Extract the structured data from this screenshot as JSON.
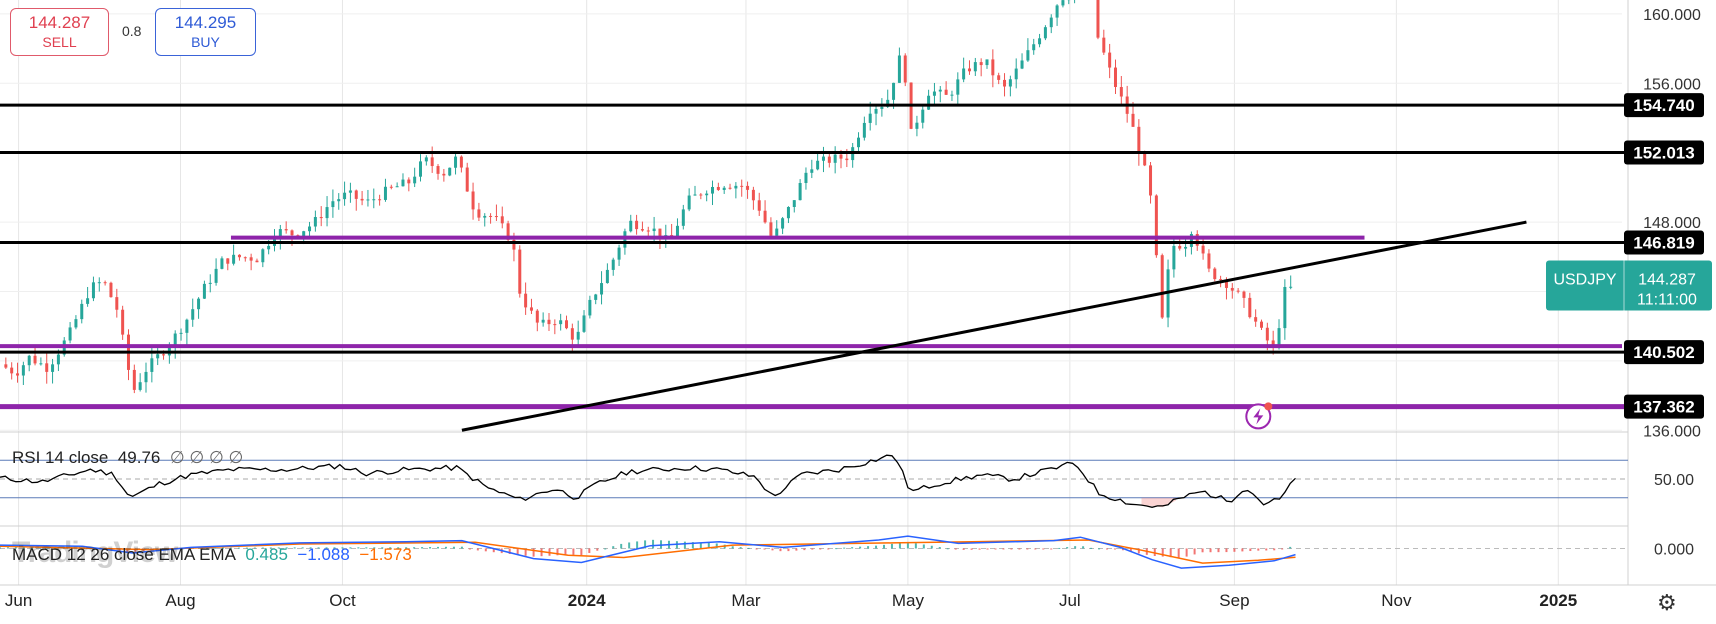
{
  "trade_panel": {
    "sell_price": "144.287",
    "sell_label": "SELL",
    "spread": "0.8",
    "buy_price": "144.295",
    "buy_label": "BUY"
  },
  "symbol_tag": {
    "symbol": "USDJPY",
    "price": "144.287",
    "countdown": "11:11:00",
    "color": "#26a69a"
  },
  "watermark": "TradingView",
  "colors": {
    "up": "#26a69a",
    "down": "#ef5350",
    "support_line": "#000000",
    "purple_line": "#8e24aa",
    "rsi_line": "#000000",
    "macd_line": "#2962ff",
    "signal_line": "#ff6d00"
  },
  "icons": {
    "alert": "lightning-alert-icon",
    "settings": "settings-gear-icon"
  },
  "chart_data": [
    {
      "type": "candlestick",
      "symbol": "USDJPY",
      "x_range": [
        "2023-05-25",
        "2025-01-25"
      ],
      "y_scale": "linear",
      "ylim": [
        135.9,
        160.8
      ],
      "y_ticks": [
        "136.000",
        "148.000",
        "156.000",
        "160.000"
      ],
      "x_ticks": [
        "Jun",
        "Aug",
        "Oct",
        "2024",
        "Mar",
        "May",
        "Jul",
        "Sep",
        "Nov",
        "2025"
      ],
      "x_tick_dates": [
        "2023-06-01",
        "2023-08-01",
        "2023-10-01",
        "2024-01-01",
        "2024-03-01",
        "2024-05-01",
        "2024-07-01",
        "2024-09-01",
        "2024-11-01",
        "2025-01-01"
      ],
      "grid": true,
      "close_path": [
        [
          "2023-05-25",
          139.8
        ],
        [
          "2023-05-31",
          139.3
        ],
        [
          "2023-06-05",
          140.2
        ],
        [
          "2023-06-12",
          139.6
        ],
        [
          "2023-06-20",
          141.5
        ],
        [
          "2023-06-28",
          144.2
        ],
        [
          "2023-07-03",
          144.6
        ],
        [
          "2023-07-08",
          143.0
        ],
        [
          "2023-07-14",
          138.2
        ],
        [
          "2023-07-19",
          139.5
        ],
        [
          "2023-07-28",
          141.0
        ],
        [
          "2023-08-03",
          142.3
        ],
        [
          "2023-08-10",
          144.2
        ],
        [
          "2023-08-17",
          145.8
        ],
        [
          "2023-08-24",
          146.0
        ],
        [
          "2023-08-30",
          145.9
        ],
        [
          "2023-09-06",
          147.5
        ],
        [
          "2023-09-13",
          147.3
        ],
        [
          "2023-09-20",
          147.9
        ],
        [
          "2023-09-27",
          149.2
        ],
        [
          "2023-10-03",
          149.6
        ],
        [
          "2023-10-10",
          149.1
        ],
        [
          "2023-10-19",
          149.9
        ],
        [
          "2023-10-26",
          150.3
        ],
        [
          "2023-11-01",
          151.6
        ],
        [
          "2023-11-08",
          150.8
        ],
        [
          "2023-11-13",
          151.7
        ],
        [
          "2023-11-20",
          148.6
        ],
        [
          "2023-11-27",
          148.3
        ],
        [
          "2023-12-04",
          146.9
        ],
        [
          "2023-12-07",
          143.8
        ],
        [
          "2023-12-14",
          142.0
        ],
        [
          "2023-12-21",
          142.4
        ],
        [
          "2023-12-28",
          141.2
        ],
        [
          "2024-01-03",
          143.6
        ],
        [
          "2024-01-10",
          145.5
        ],
        [
          "2024-01-17",
          148.0
        ],
        [
          "2024-01-25",
          147.7
        ],
        [
          "2024-02-01",
          146.8
        ],
        [
          "2024-02-08",
          149.2
        ],
        [
          "2024-02-15",
          149.9
        ],
        [
          "2024-02-22",
          150.2
        ],
        [
          "2024-02-29",
          150.1
        ],
        [
          "2024-03-06",
          148.8
        ],
        [
          "2024-03-11",
          147.0
        ],
        [
          "2024-03-18",
          149.0
        ],
        [
          "2024-03-25",
          151.3
        ],
        [
          "2024-04-02",
          151.6
        ],
        [
          "2024-04-09",
          151.8
        ],
        [
          "2024-04-16",
          154.5
        ],
        [
          "2024-04-23",
          154.9
        ],
        [
          "2024-04-29",
          158.0
        ],
        [
          "2024-05-02",
          153.0
        ],
        [
          "2024-05-09",
          155.6
        ],
        [
          "2024-05-16",
          155.2
        ],
        [
          "2024-05-23",
          156.8
        ],
        [
          "2024-05-30",
          157.3
        ],
        [
          "2024-06-06",
          155.6
        ],
        [
          "2024-06-13",
          157.2
        ],
        [
          "2024-06-20",
          158.9
        ],
        [
          "2024-06-27",
          160.8
        ],
        [
          "2024-07-03",
          161.6
        ],
        [
          "2024-07-10",
          161.5
        ],
        [
          "2024-07-11",
          158.9
        ],
        [
          "2024-07-17",
          156.3
        ],
        [
          "2024-07-24",
          153.8
        ],
        [
          "2024-07-31",
          150.0
        ],
        [
          "2024-08-05",
          142.0
        ],
        [
          "2024-08-08",
          146.6
        ],
        [
          "2024-08-14",
          146.8
        ],
        [
          "2024-08-16",
          147.7
        ],
        [
          "2024-08-22",
          145.2
        ],
        [
          "2024-08-29",
          144.5
        ],
        [
          "2024-09-04",
          143.5
        ],
        [
          "2024-09-11",
          141.7
        ],
        [
          "2024-09-16",
          140.6
        ],
        [
          "2024-09-18",
          142.3
        ],
        [
          "2024-09-20",
          144.0
        ],
        [
          "2024-09-24",
          144.3
        ]
      ],
      "horizontal_levels": [
        {
          "value": 154.74,
          "label": "154.740",
          "color": "#000000"
        },
        {
          "value": 152.013,
          "label": "152.013",
          "color": "#000000"
        },
        {
          "value": 146.819,
          "label": "146.819",
          "color": "#000000"
        },
        {
          "value": 140.502,
          "label": "140.502",
          "color": "#000000"
        },
        {
          "value": 137.362,
          "label": "137.362",
          "color": "#8e24aa"
        }
      ],
      "purple_levels": [
        {
          "value": 147.1,
          "from": "2023-08-20",
          "to": "2024-10-20"
        },
        {
          "value": 140.85,
          "from": "2023-05-25",
          "to": "2025-01-25"
        }
      ],
      "trendline": [
        [
          "2023-11-15",
          136.0
        ],
        [
          "2024-12-20",
          148.0
        ]
      ],
      "last_price": 144.287
    },
    {
      "type": "line",
      "name": "RSI 14 close",
      "value_label": "49.76",
      "placeholders": [
        "∅",
        "∅",
        "∅",
        "∅"
      ],
      "ylim": [
        0,
        100
      ],
      "bands": [
        30,
        70
      ],
      "y_ticks": [
        "50.00"
      ],
      "path": [
        [
          "2023-05-25",
          51
        ],
        [
          "2023-06-10",
          47
        ],
        [
          "2023-06-28",
          60
        ],
        [
          "2023-07-07",
          55
        ],
        [
          "2023-07-13",
          30
        ],
        [
          "2023-07-24",
          45
        ],
        [
          "2023-08-04",
          54
        ],
        [
          "2023-08-20",
          60
        ],
        [
          "2023-09-10",
          60
        ],
        [
          "2023-09-30",
          64
        ],
        [
          "2023-10-10",
          56
        ],
        [
          "2023-10-26",
          60
        ],
        [
          "2023-11-13",
          62
        ],
        [
          "2023-11-25",
          40
        ],
        [
          "2023-12-07",
          28
        ],
        [
          "2023-12-20",
          40
        ],
        [
          "2023-12-28",
          30
        ],
        [
          "2024-01-05",
          45
        ],
        [
          "2024-01-17",
          58
        ],
        [
          "2024-02-08",
          62
        ],
        [
          "2024-02-20",
          60
        ],
        [
          "2024-03-05",
          52
        ],
        [
          "2024-03-11",
          30
        ],
        [
          "2024-03-22",
          55
        ],
        [
          "2024-04-05",
          60
        ],
        [
          "2024-04-26",
          76
        ],
        [
          "2024-05-02",
          36
        ],
        [
          "2024-05-12",
          45
        ],
        [
          "2024-05-28",
          54
        ],
        [
          "2024-06-10",
          50
        ],
        [
          "2024-06-26",
          62
        ],
        [
          "2024-07-03",
          67
        ],
        [
          "2024-07-12",
          35
        ],
        [
          "2024-07-25",
          23
        ],
        [
          "2024-08-05",
          20
        ],
        [
          "2024-08-12",
          30
        ],
        [
          "2024-08-20",
          37
        ],
        [
          "2024-08-30",
          26
        ],
        [
          "2024-09-05",
          42
        ],
        [
          "2024-09-12",
          24
        ],
        [
          "2024-09-18",
          28
        ],
        [
          "2024-09-24",
          50
        ]
      ]
    },
    {
      "type": "line",
      "name": "MACD 12 26 close EMA EMA",
      "values_text": [
        "0.485",
        "−1.088",
        "−1.573"
      ],
      "value_colors": [
        "#26a69a",
        "#2962ff",
        "#ff6d00"
      ],
      "y_ticks": [
        "0.000"
      ],
      "ylim": [
        -6.5,
        4.0
      ],
      "macd_path": [
        [
          "2023-05-25",
          0.6
        ],
        [
          "2023-06-25",
          0.4
        ],
        [
          "2023-07-14",
          -0.8
        ],
        [
          "2023-08-05",
          0.2
        ],
        [
          "2023-09-15",
          1.0
        ],
        [
          "2023-10-25",
          1.2
        ],
        [
          "2023-11-15",
          1.4
        ],
        [
          "2023-12-12",
          -1.8
        ],
        [
          "2023-12-30",
          -2.5
        ],
        [
          "2024-01-25",
          0.5
        ],
        [
          "2024-02-20",
          1.2
        ],
        [
          "2024-03-15",
          0.2
        ],
        [
          "2024-04-20",
          1.5
        ],
        [
          "2024-05-01",
          2.2
        ],
        [
          "2024-05-20",
          0.9
        ],
        [
          "2024-06-25",
          1.4
        ],
        [
          "2024-07-05",
          2.0
        ],
        [
          "2024-07-20",
          0.2
        ],
        [
          "2024-08-01",
          -2.0
        ],
        [
          "2024-08-12",
          -3.5
        ],
        [
          "2024-08-30",
          -3.0
        ],
        [
          "2024-09-16",
          -2.2
        ],
        [
          "2024-09-24",
          -1.088
        ]
      ],
      "signal_path": [
        [
          "2023-05-25",
          0.4
        ],
        [
          "2023-07-20",
          -0.2
        ],
        [
          "2023-09-15",
          0.8
        ],
        [
          "2023-11-20",
          1.1
        ],
        [
          "2023-12-25",
          -1.2
        ],
        [
          "2024-01-15",
          -1.6
        ],
        [
          "2024-02-25",
          0.6
        ],
        [
          "2024-04-25",
          1.0
        ],
        [
          "2024-05-25",
          1.2
        ],
        [
          "2024-07-08",
          1.5
        ],
        [
          "2024-07-28",
          -0.3
        ],
        [
          "2024-08-20",
          -2.6
        ],
        [
          "2024-09-10",
          -2.1
        ],
        [
          "2024-09-24",
          -1.573
        ]
      ],
      "histogram": 0.485
    }
  ]
}
